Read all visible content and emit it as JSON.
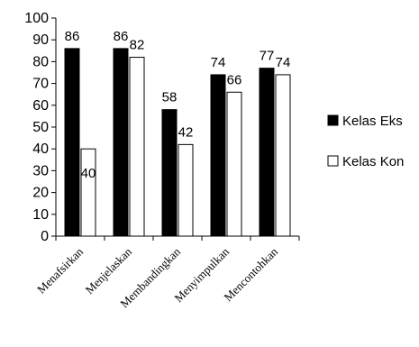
{
  "chart_data": {
    "type": "bar",
    "categories": [
      "Menafsirkan",
      "Menjelaskan",
      "Membandingkan",
      "Menyimpulkan",
      "Mencontohkan"
    ],
    "series": [
      {
        "name": "Kelas Eks",
        "values": [
          86,
          86,
          58,
          74,
          77
        ],
        "color": "#000000"
      },
      {
        "name": "Kelas Kon",
        "values": [
          40,
          82,
          42,
          66,
          74
        ],
        "color": "#ffffff"
      }
    ],
    "ylim": [
      0,
      100
    ],
    "yticks": [
      "0",
      "10",
      "20",
      "30",
      "40",
      "50",
      "60",
      "70",
      "80",
      "90",
      "100"
    ],
    "grid": false,
    "legend_position": "right"
  }
}
